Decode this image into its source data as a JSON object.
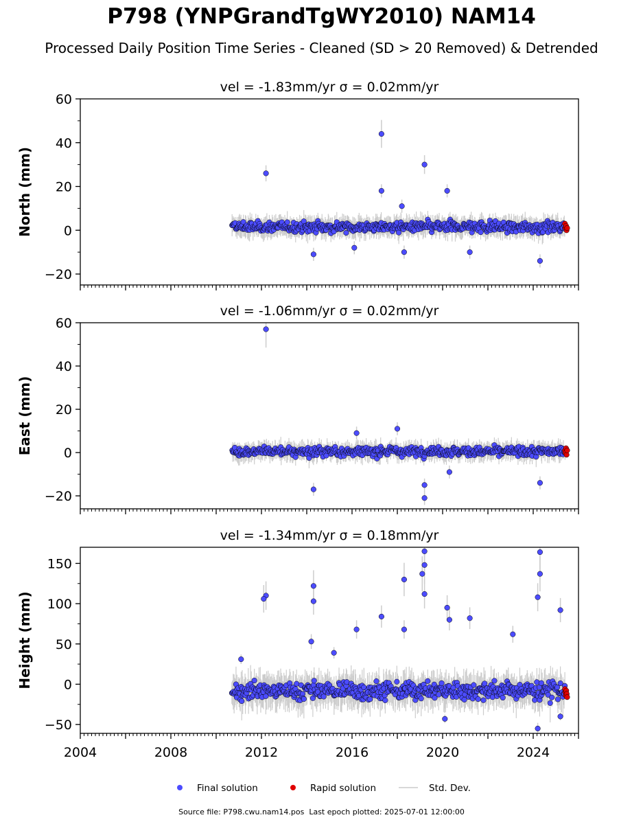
{
  "title": "P798 (YNPGrandTgWY2010) NAM14",
  "subtitle": "Processed Daily Position Time Series - Cleaned (SD > 20 Removed) & Detrended",
  "footer": "Source file: P798.cwu.nam14.pos  Last epoch plotted: 2025-07-01 12:00:00",
  "legend": [
    {
      "label": "Final solution",
      "color": "#4c4cff",
      "kind": "dot"
    },
    {
      "label": "Rapid solution",
      "color": "#e00000",
      "kind": "dot"
    },
    {
      "label": "Std. Dev.",
      "color": "#cccccc",
      "kind": "line"
    }
  ],
  "colors": {
    "final": "#4c4cff",
    "rapid": "#e00000",
    "stddev": "#cccccc",
    "edge": "#000000"
  },
  "chart_data": [
    {
      "type": "scatter",
      "title": "vel = -1.83mm/yr   σ = 0.02mm/yr",
      "ylabel": "North (mm)",
      "xlim": [
        2004.0,
        2026.0
      ],
      "ylim": [
        -25,
        60
      ],
      "yticks": [
        -20,
        0,
        20,
        40,
        60
      ],
      "ytick_labels": [
        "−20",
        "0",
        "20",
        "40",
        "60"
      ],
      "xtick_labels": [],
      "final_range": [
        2010.7,
        2025.4
      ],
      "rapid_range": [
        2025.4,
        2025.5
      ],
      "baseline": 1.5,
      "noise": 2.0,
      "final_outliers": [
        [
          2012.2,
          26
        ],
        [
          2017.3,
          44
        ],
        [
          2019.2,
          30
        ],
        [
          2020.2,
          18
        ],
        [
          2017.3,
          18
        ],
        [
          2018.3,
          -10
        ],
        [
          2024.3,
          -14
        ],
        [
          2014.3,
          -11
        ],
        [
          2018.2,
          11
        ],
        [
          2021.2,
          -10
        ],
        [
          2016.1,
          -8
        ]
      ],
      "rapid_values": [
        3,
        1,
        2,
        0,
        1
      ]
    },
    {
      "type": "scatter",
      "title": "vel = -1.06mm/yr   σ = 0.02mm/yr",
      "ylabel": "East (mm)",
      "xlim": [
        2004.0,
        2026.0
      ],
      "ylim": [
        -26,
        60
      ],
      "yticks": [
        -20,
        0,
        20,
        40,
        60
      ],
      "ytick_labels": [
        "−20",
        "0",
        "20",
        "40",
        "60"
      ],
      "xtick_labels": [],
      "final_range": [
        2010.7,
        2025.4
      ],
      "rapid_range": [
        2025.4,
        2025.5
      ],
      "baseline": 0.5,
      "noise": 1.8,
      "final_outliers": [
        [
          2012.2,
          57
        ],
        [
          2014.3,
          -17
        ],
        [
          2019.2,
          -21
        ],
        [
          2019.2,
          -15
        ],
        [
          2018.0,
          11
        ],
        [
          2024.3,
          -14
        ],
        [
          2016.2,
          9
        ],
        [
          2020.3,
          -9
        ]
      ],
      "rapid_values": [
        1,
        0,
        2,
        -1,
        1
      ]
    },
    {
      "type": "scatter",
      "title": "vel = -1.34mm/yr   σ = 0.18mm/yr",
      "ylabel": "Height (mm)",
      "xlim": [
        2004.0,
        2026.0
      ],
      "ylim": [
        -61,
        170
      ],
      "yticks": [
        -50,
        0,
        50,
        100,
        150
      ],
      "ytick_labels": [
        "−50",
        "0",
        "50",
        "100",
        "150"
      ],
      "xtick_labels": [
        "2004",
        "2008",
        "2012",
        "2016",
        "2020",
        "2024"
      ],
      "xtick_values": [
        2004,
        2008,
        2012,
        2016,
        2020,
        2024
      ],
      "final_range": [
        2010.7,
        2025.4
      ],
      "rapid_range": [
        2025.4,
        2025.5
      ],
      "baseline": -8,
      "noise": 9,
      "final_outliers": [
        [
          2012.2,
          110
        ],
        [
          2012.1,
          106
        ],
        [
          2014.3,
          122
        ],
        [
          2014.3,
          103
        ],
        [
          2014.2,
          53
        ],
        [
          2017.3,
          84
        ],
        [
          2018.3,
          130
        ],
        [
          2019.2,
          165
        ],
        [
          2019.2,
          148
        ],
        [
          2019.1,
          137
        ],
        [
          2019.2,
          112
        ],
        [
          2020.2,
          95
        ],
        [
          2020.3,
          80
        ],
        [
          2021.2,
          82
        ],
        [
          2023.1,
          62
        ],
        [
          2024.3,
          164
        ],
        [
          2024.3,
          137
        ],
        [
          2024.2,
          108
        ],
        [
          2025.2,
          92
        ],
        [
          2024.2,
          -55
        ],
        [
          2020.1,
          -43
        ],
        [
          2016.2,
          68
        ],
        [
          2018.3,
          68
        ],
        [
          2011.1,
          31
        ],
        [
          2015.2,
          39
        ],
        [
          2025.2,
          -40
        ]
      ],
      "rapid_values": [
        -6,
        -10,
        -14,
        -8,
        -12,
        -16
      ]
    }
  ]
}
